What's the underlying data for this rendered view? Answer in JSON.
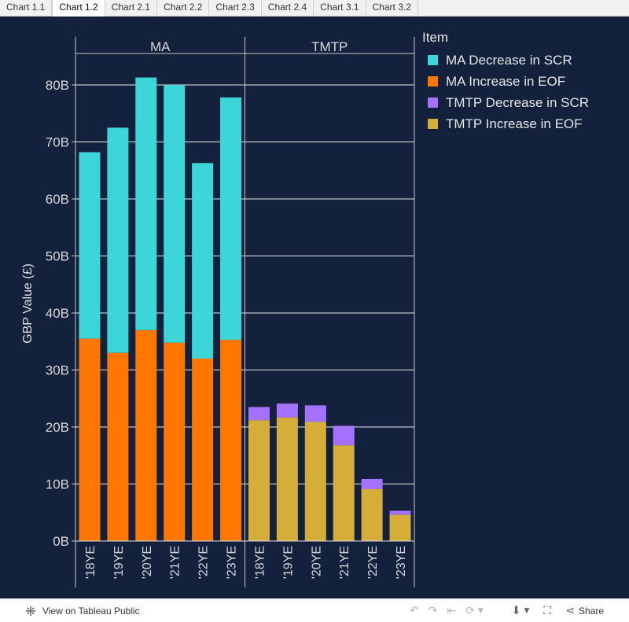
{
  "tabs": [
    "Chart 1.1",
    "Chart 1.2",
    "Chart 2.1",
    "Chart 2.2",
    "Chart 2.3",
    "Chart 2.4",
    "Chart 3.1",
    "Chart 3.2"
  ],
  "active_tab": 1,
  "chart_data": {
    "type": "bar",
    "stacked": true,
    "ylabel": "GBP Value (£)",
    "ylim": [
      0,
      85
    ],
    "yticks": [
      "0B",
      "10B",
      "20B",
      "30B",
      "40B",
      "50B",
      "60B",
      "70B",
      "80B"
    ],
    "ytick_values": [
      0,
      10,
      20,
      30,
      40,
      50,
      60,
      70,
      80
    ],
    "categories": [
      "'18YE",
      "'19YE",
      "'20YE",
      "'21YE",
      "'22YE",
      "'23YE"
    ],
    "panels": [
      {
        "name": "MA",
        "series": [
          {
            "name": "MA Increase in EOF",
            "color": "#ff7700",
            "values": [
              35.5,
              33.0,
              37.0,
              34.8,
              32.0,
              35.3
            ]
          },
          {
            "name": "MA Decrease in SCR",
            "color": "#3cd6d9",
            "values": [
              32.7,
              39.5,
              44.3,
              45.2,
              34.3,
              42.5
            ]
          }
        ]
      },
      {
        "name": "TMTP",
        "series": [
          {
            "name": "TMTP Increase in EOF",
            "color": "#d4ae38",
            "values": [
              21.2,
              21.7,
              20.9,
              16.8,
              9.1,
              4.6
            ]
          },
          {
            "name": "TMTP Decrease in SCR",
            "color": "#a472ff",
            "values": [
              2.3,
              2.4,
              2.9,
              3.4,
              1.8,
              0.7
            ]
          }
        ]
      }
    ],
    "legend": {
      "title": "Item",
      "placement": "right",
      "items": [
        {
          "label": "MA Decrease in SCR",
          "color": "#3cd6d9"
        },
        {
          "label": "MA Increase in EOF",
          "color": "#ff7700"
        },
        {
          "label": "TMTP Decrease in SCR",
          "color": "#a472ff"
        },
        {
          "label": "TMTP Increase in EOF",
          "color": "#d4ae38"
        }
      ]
    },
    "grid": true
  },
  "footer": {
    "view_label": "View on Tableau Public",
    "share_label": "Share"
  }
}
